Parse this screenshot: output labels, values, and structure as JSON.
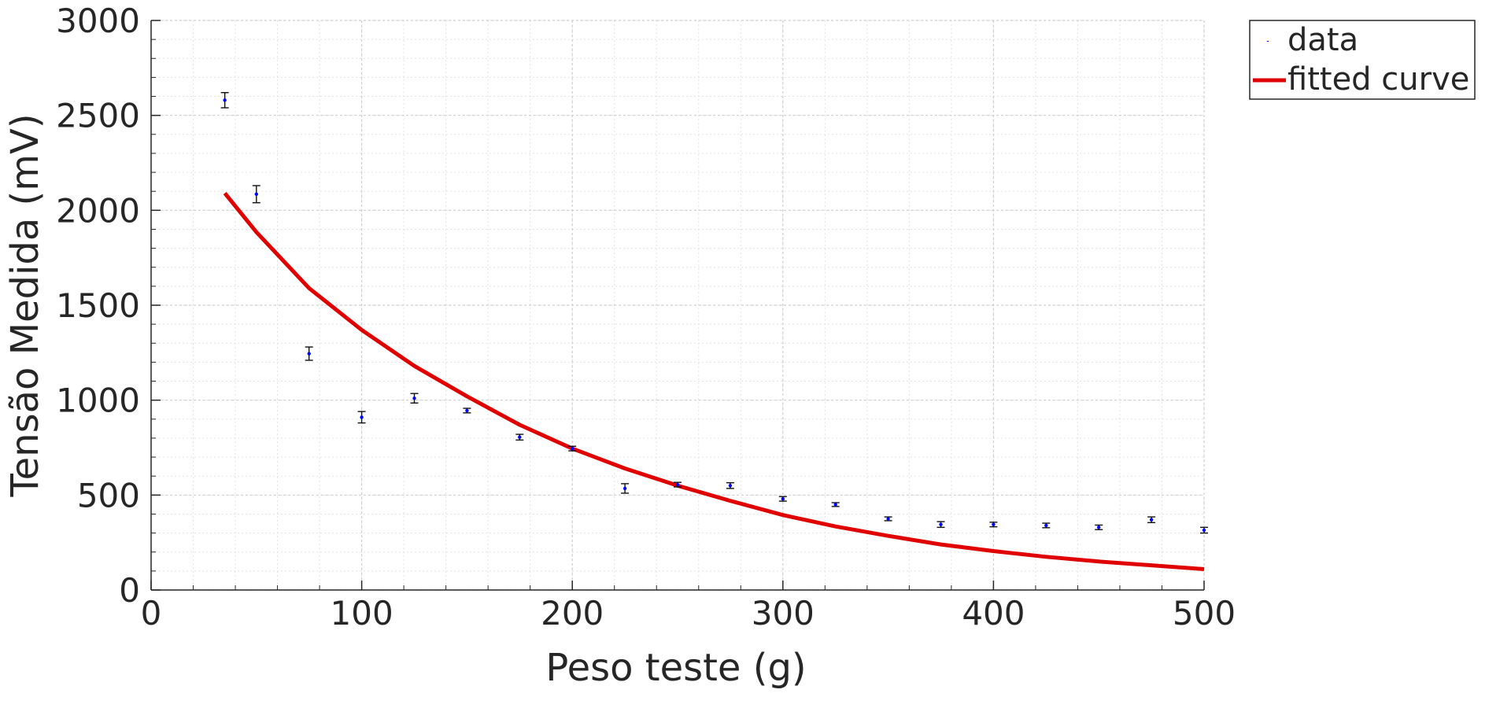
{
  "chart_data": {
    "type": "scatter",
    "xlabel": "Peso teste (g)",
    "ylabel": "Tensão Medida (mV)",
    "xlim": [
      0,
      500
    ],
    "ylim": [
      0,
      3000
    ],
    "x_ticks": [
      0,
      100,
      200,
      300,
      400,
      500
    ],
    "y_ticks": [
      0,
      500,
      1000,
      1500,
      2000,
      2500,
      3000
    ],
    "x_minor_step": 20,
    "y_minor_step": 100,
    "grid": true,
    "legend_position": "top-right, outside plot area",
    "series": [
      {
        "name": "data",
        "kind": "points-with-error-bars",
        "color": "#0000ff",
        "x": [
          35,
          50,
          75,
          100,
          125,
          150,
          175,
          200,
          225,
          250,
          275,
          300,
          325,
          350,
          375,
          400,
          425,
          450,
          475,
          500
        ],
        "y": [
          2580,
          2085,
          1245,
          910,
          1010,
          945,
          805,
          745,
          535,
          555,
          550,
          480,
          450,
          375,
          345,
          345,
          340,
          330,
          370,
          315
        ],
        "error": [
          40,
          45,
          35,
          30,
          25,
          12,
          15,
          12,
          25,
          12,
          15,
          12,
          10,
          10,
          15,
          12,
          12,
          12,
          15,
          15
        ]
      },
      {
        "name": "fitted curve",
        "kind": "line",
        "color": "#e00000",
        "x": [
          35,
          50,
          75,
          100,
          125,
          150,
          175,
          200,
          225,
          250,
          275,
          300,
          325,
          350,
          375,
          400,
          425,
          450,
          475,
          500
        ],
        "y": [
          2090,
          1885,
          1590,
          1370,
          1180,
          1020,
          870,
          745,
          640,
          550,
          470,
          395,
          335,
          285,
          240,
          205,
          175,
          150,
          130,
          110
        ]
      }
    ]
  }
}
